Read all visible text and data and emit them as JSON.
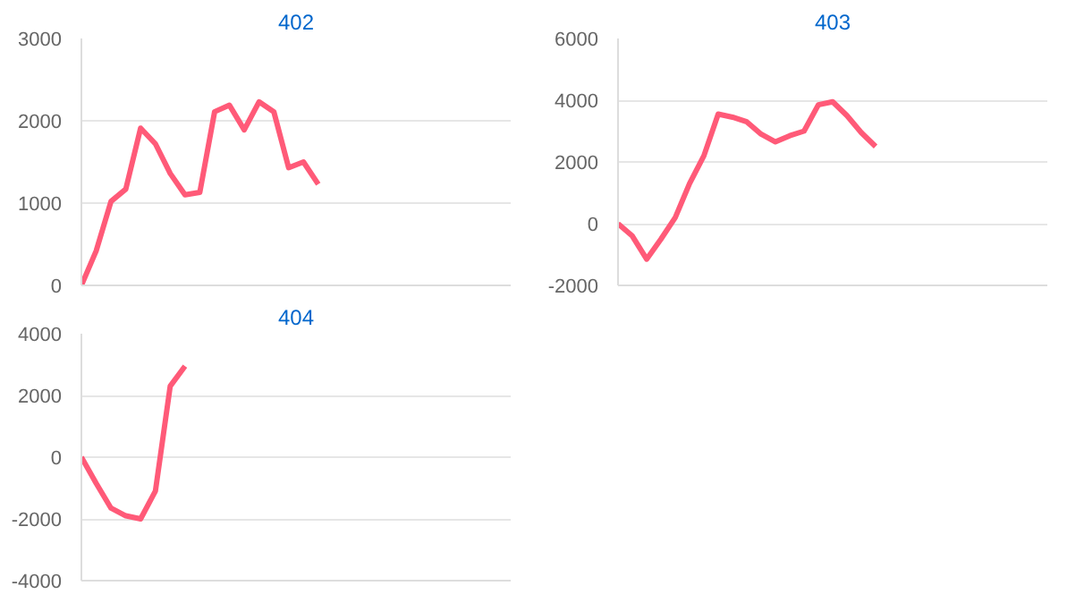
{
  "chart_data": [
    {
      "type": "line",
      "title": "402",
      "categories": [
        null,
        null,
        null,
        null,
        null,
        null,
        null,
        null,
        null,
        null,
        null,
        null,
        null,
        null,
        null,
        null,
        null,
        null,
        null,
        null,
        null,
        null,
        null,
        null,
        null,
        null,
        null,
        null,
        null,
        null
      ],
      "series": [
        {
          "color": "#ff5a78",
          "values": [
            0,
            420,
            1020,
            1170,
            1910,
            1720,
            1360,
            1100,
            1130,
            2110,
            2190,
            1890,
            2230,
            2110,
            1430,
            1500,
            1230,
            null,
            null,
            null,
            null,
            null,
            null,
            null,
            null,
            null,
            null,
            null,
            null,
            null
          ]
        }
      ],
      "ylim": [
        0,
        3000
      ],
      "yticks": [
        0,
        1000,
        2000,
        3000
      ],
      "grid": "y",
      "tick_labels": "y"
    },
    {
      "type": "line",
      "title": "403",
      "categories": [
        null,
        null,
        null,
        null,
        null,
        null,
        null,
        null,
        null,
        null,
        null,
        null,
        null,
        null,
        null,
        null,
        null,
        null,
        null,
        null,
        null,
        null,
        null,
        null,
        null,
        null,
        null,
        null,
        null,
        null,
        null
      ],
      "series": [
        {
          "color": "#ff5a78",
          "values": [
            0,
            -400,
            -1150,
            -500,
            200,
            1300,
            2200,
            3550,
            3450,
            3300,
            2900,
            2650,
            2850,
            3000,
            3850,
            3950,
            3500,
            2950,
            2500,
            null,
            null,
            null,
            null,
            null,
            null,
            null,
            null,
            null,
            null,
            null,
            null
          ]
        }
      ],
      "ylim": [
        -2000,
        6000
      ],
      "yticks": [
        -2000,
        0,
        2000,
        4000,
        6000
      ],
      "grid": "y",
      "tick_labels": "y"
    },
    {
      "type": "line",
      "title": "404",
      "categories": [
        null,
        null,
        null,
        null,
        null,
        null,
        null,
        null,
        null,
        null,
        null,
        null,
        null,
        null,
        null,
        null,
        null,
        null,
        null,
        null,
        null,
        null,
        null,
        null,
        null,
        null,
        null,
        null,
        null,
        null
      ],
      "series": [
        {
          "color": "#ff5a78",
          "values": [
            0,
            -850,
            -1650,
            -1900,
            -2000,
            -1100,
            2300,
            2950,
            null,
            null,
            null,
            null,
            null,
            null,
            null,
            null,
            null,
            null,
            null,
            null,
            null,
            null,
            null,
            null,
            null,
            null,
            null,
            null,
            null,
            null
          ]
        }
      ],
      "ylim": [
        -4000,
        4000
      ],
      "yticks": [
        -4000,
        -2000,
        0,
        2000,
        4000
      ],
      "grid": "y",
      "tick_labels": "y"
    }
  ]
}
